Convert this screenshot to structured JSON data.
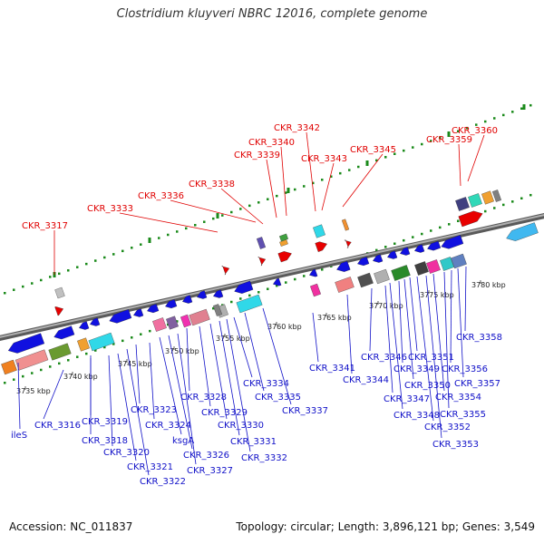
{
  "title": "Clostridium kluyveri NBRC 12016, complete genome",
  "footer": {
    "accession": "Accession: NC_011837",
    "summary": "Topology: circular; Length: 3,896,121 bp; Genes: 3,549"
  },
  "colors": {
    "top_label": "#e00000",
    "bottom_label": "#1010c8",
    "backbone": "#808080",
    "track_dots": "#1a8a1a",
    "forward_gene": "#e80000",
    "reverse_gene": "#1010e0"
  },
  "scale_ticks": [
    "3735 kbp",
    "3740 kbp",
    "3745 kbp",
    "3750 kbp",
    "3755 kbp",
    "3760 kbp",
    "3765 kbp",
    "3770 kbp",
    "3775 kbp",
    "3780 kbp"
  ],
  "top_labels": [
    "CKR_3317",
    "CKR_3333",
    "CKR_3336",
    "CKR_3338",
    "CKR_3339",
    "CKR_3340",
    "CKR_3342",
    "CKR_3343",
    "CKR_3345",
    "CKR_3359",
    "CKR_3360"
  ],
  "bottom_labels": [
    "ileS",
    "CKR_3316",
    "CKR_3319",
    "CKR_3318",
    "CKR_3320",
    "CKR_3321",
    "CKR_3322",
    "CKR_3323",
    "CKR_3324",
    "ksgA",
    "CKR_3326",
    "CKR_3327",
    "CKR_3328",
    "CKR_3329",
    "CKR_3330",
    "CKR_3331",
    "CKR_3332",
    "CKR_3334",
    "CKR_3335",
    "CKR_3337",
    "CKR_3341",
    "CKR_3344",
    "CKR_3346",
    "CKR_3347",
    "CKR_3348",
    "CKR_3349",
    "CKR_3350",
    "CKR_3351",
    "CKR_3352",
    "CKR_3353",
    "CKR_3354",
    "CKR_3355",
    "CKR_3356",
    "CKR_3357",
    "CKR_3358"
  ]
}
